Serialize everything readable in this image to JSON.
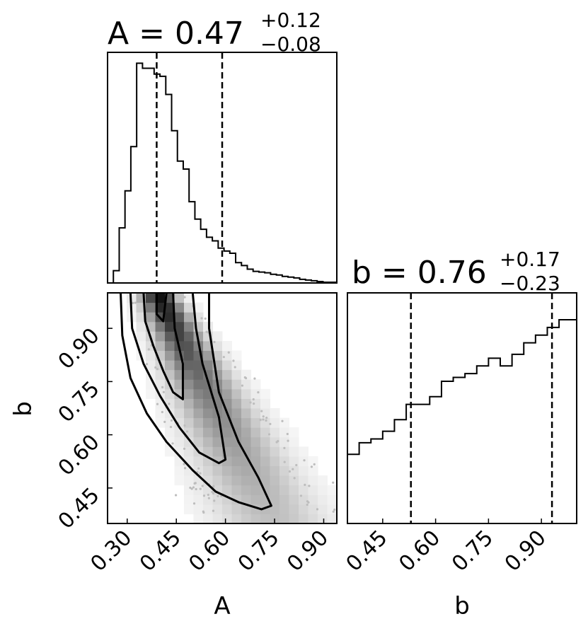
{
  "chart_data": [
    {
      "type": "histogram",
      "panel": "marginal-A",
      "title": {
        "param": "A",
        "value": "0.47",
        "plus": "+0.12",
        "minus": "−0.08"
      },
      "xlim": [
        0.24,
        0.94
      ],
      "bin_edges": [
        0.24,
        0.2578,
        0.2756,
        0.2933,
        0.3111,
        0.3289,
        0.3467,
        0.3644,
        0.3822,
        0.4,
        0.4178,
        0.4356,
        0.4533,
        0.4711,
        0.4889,
        0.5067,
        0.5244,
        0.5422,
        0.56,
        0.5778,
        0.5956,
        0.6133,
        0.6311,
        0.6489,
        0.6667,
        0.6844,
        0.7022,
        0.72,
        0.7378,
        0.7556,
        0.7733,
        0.7911,
        0.8089,
        0.8267,
        0.8444,
        0.8622,
        0.88,
        0.8978,
        0.9156,
        0.94
      ],
      "counts": [
        0,
        17,
        76,
        127,
        188,
        303,
        296,
        296,
        288,
        285,
        260,
        210,
        168,
        157,
        112,
        88,
        74,
        63,
        58,
        48,
        44,
        41,
        28,
        24,
        19,
        16,
        15,
        14,
        12,
        11,
        9,
        8,
        7,
        5,
        4,
        3,
        2,
        1,
        1
      ],
      "quantiles": [
        0.39,
        0.59
      ],
      "ymax": 318
    },
    {
      "type": "scatter-density-contour",
      "panel": "joint-A-b",
      "xlabel": "A",
      "ylabel": "b",
      "xlim": [
        0.24,
        0.94
      ],
      "ylim": [
        0.35,
        1.0
      ],
      "xticks": [
        "0.30",
        "0.45",
        "0.60",
        "0.75",
        "0.90"
      ],
      "yticks": [
        "0.45",
        "0.60",
        "0.75",
        "0.90"
      ],
      "contours": [
        [
          [
            0.39,
            1.0
          ],
          [
            0.39,
            0.94
          ],
          [
            0.41,
            0.92
          ],
          [
            0.415,
            0.96
          ],
          [
            0.42,
            1.0
          ]
        ],
        [
          [
            0.35,
            1.0
          ],
          [
            0.355,
            0.92
          ],
          [
            0.38,
            0.85
          ],
          [
            0.41,
            0.78
          ],
          [
            0.44,
            0.72
          ],
          [
            0.47,
            0.7
          ],
          [
            0.47,
            0.8
          ],
          [
            0.445,
            0.9
          ],
          [
            0.44,
            1.0
          ]
        ],
        [
          [
            0.31,
            1.0
          ],
          [
            0.315,
            0.9
          ],
          [
            0.35,
            0.8
          ],
          [
            0.4,
            0.71
          ],
          [
            0.46,
            0.62
          ],
          [
            0.52,
            0.55
          ],
          [
            0.58,
            0.52
          ],
          [
            0.6,
            0.53
          ],
          [
            0.58,
            0.65
          ],
          [
            0.53,
            0.8
          ],
          [
            0.51,
            0.9
          ],
          [
            0.5,
            1.0
          ]
        ],
        [
          [
            0.28,
            1.0
          ],
          [
            0.285,
            0.88
          ],
          [
            0.31,
            0.76
          ],
          [
            0.36,
            0.66
          ],
          [
            0.42,
            0.58
          ],
          [
            0.5,
            0.5
          ],
          [
            0.57,
            0.44
          ],
          [
            0.64,
            0.41
          ],
          [
            0.71,
            0.39
          ],
          [
            0.74,
            0.4
          ],
          [
            0.7,
            0.48
          ],
          [
            0.64,
            0.58
          ],
          [
            0.58,
            0.72
          ],
          [
            0.55,
            0.9
          ],
          [
            0.55,
            1.0
          ]
        ]
      ]
    },
    {
      "type": "histogram",
      "panel": "marginal-b",
      "xlabel": "b",
      "title": {
        "param": "b",
        "value": "0.76",
        "plus": "+0.17",
        "minus": "−0.23"
      },
      "xlim": [
        0.35,
        1.0
      ],
      "xticks": [
        "0.45",
        "0.60",
        "0.75",
        "0.90"
      ],
      "bin_edges": [
        0.35,
        0.3667,
        0.3833,
        0.4,
        0.4167,
        0.4333,
        0.45,
        0.4667,
        0.4833,
        0.5,
        0.5167,
        0.5333,
        0.55,
        0.5667,
        0.5833,
        0.6,
        0.6167,
        0.6333,
        0.65,
        0.6667,
        0.6833,
        0.7,
        0.7167,
        0.7333,
        0.75,
        0.7667,
        0.7833,
        0.8,
        0.8167,
        0.8333,
        0.85,
        0.8667,
        0.8833,
        0.9,
        0.9167,
        0.9333,
        0.95,
        0.9667,
        0.9833,
        1.0
      ],
      "counts": [
        128,
        128,
        131,
        131,
        132,
        132,
        134,
        134,
        137,
        137,
        141,
        141,
        141,
        141,
        143,
        143,
        147,
        147,
        148,
        148,
        149,
        149,
        151,
        151,
        153,
        153,
        151,
        151,
        154,
        154,
        157,
        157,
        159,
        159,
        161,
        161,
        163,
        163,
        163
      ],
      "quantiles": [
        0.53,
        0.93
      ],
      "ylim": [
        110,
        170
      ]
    }
  ]
}
